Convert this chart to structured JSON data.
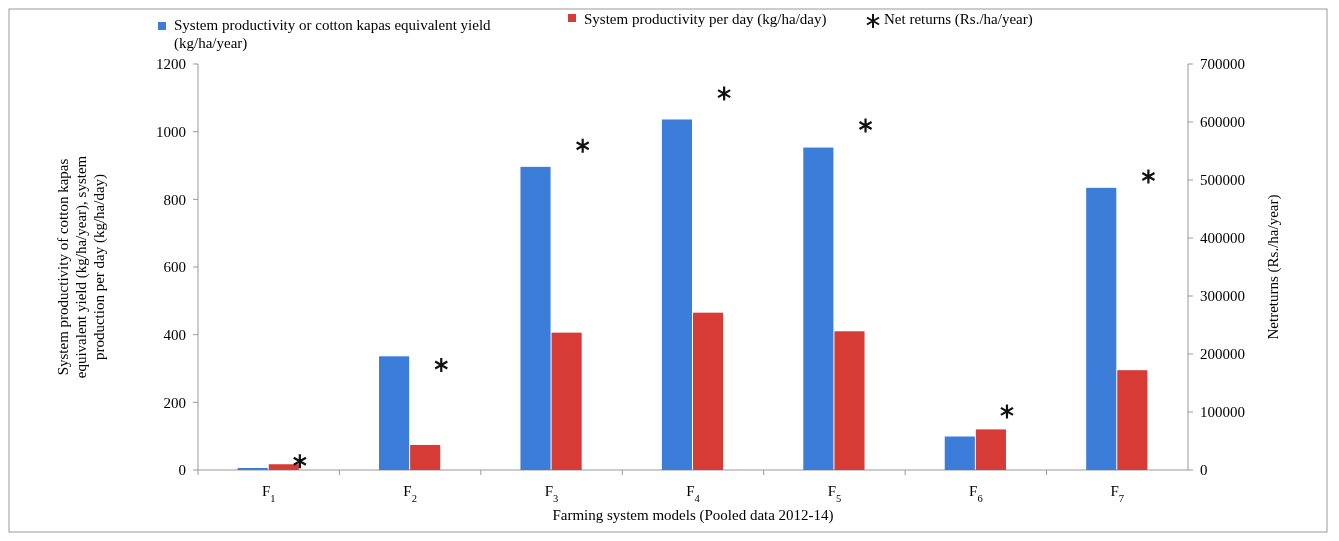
{
  "chart_data": {
    "type": "bar",
    "xlabel": "Farming system models (Pooled data 2012-14)",
    "ylabel": "System productivity of cotton kapas equivalent yield (kg/ha/year), system production per day (kg/ha/day)",
    "y2label": "Netreturns  (Rs./ha/year)",
    "categories": [
      "F$_{1}$",
      "F$_{2}$",
      "F$_{3}$",
      "F$_{4}$",
      "F$_{5}$",
      "F$_{6}$",
      "F$_{7}$"
    ],
    "series": [
      {
        "name": "System productivity or cotton kapas equivalent yield (kg/ha/year)",
        "color": "#3b7dd8",
        "values": [
          6,
          336,
          896,
          1036,
          953,
          99,
          834
        ]
      },
      {
        "name": "System productivity per day (kg/ha/day)",
        "color": "#d63b36",
        "values": [
          17,
          74,
          406,
          465,
          410,
          120,
          295
        ]
      },
      {
        "name": "Net returns  (Rs./ha/year)",
        "type": "scatter",
        "axis": "y2",
        "marker": "cross",
        "color": "#111111",
        "values": [
          15000,
          181000,
          559000,
          649000,
          594000,
          101000,
          506000
        ]
      }
    ],
    "ylim": [
      0,
      1200
    ],
    "yticks": [
      0,
      200,
      400,
      600,
      800,
      1000,
      1200
    ],
    "y2lim": [
      0,
      700000
    ],
    "y2ticks": [
      0,
      100000,
      200000,
      300000,
      400000,
      500000,
      600000,
      700000
    ],
    "legend": "top",
    "grid": false
  }
}
